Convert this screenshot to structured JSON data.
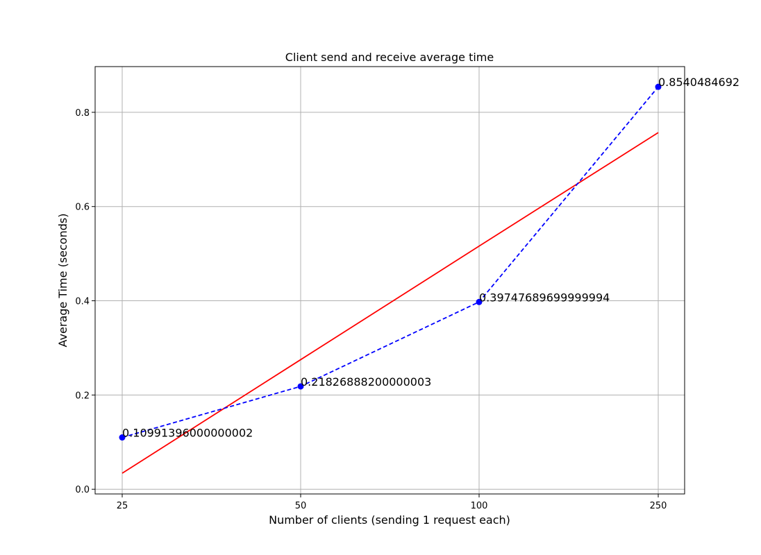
{
  "chart_data": {
    "type": "line",
    "title": "Client send and receive average time",
    "xlabel": "Number of clients (sending 1 request each)",
    "ylabel": "Average Time (seconds)",
    "categories": [
      "25",
      "50",
      "100",
      "250"
    ],
    "ylim": [
      -0.01,
      0.897
    ],
    "yticks": [
      0.0,
      0.2,
      0.4,
      0.6,
      0.8
    ],
    "ytick_labels": [
      "0.0",
      "0.2",
      "0.4",
      "0.6",
      "0.8"
    ],
    "grid": true,
    "series": [
      {
        "style": "dashed-markers",
        "color": "#0000ff",
        "values": [
          0.10991396000000002,
          0.21826888200000003,
          0.39747689699999994,
          0.8540484692
        ],
        "labels": [
          "0.10991396000000002",
          "0.21826888200000003",
          "0.39747689699999994",
          "0.8540484692"
        ]
      },
      {
        "style": "solid",
        "color": "#ff0000",
        "values": [
          0.034,
          0.275,
          0.516,
          0.757
        ]
      }
    ]
  }
}
